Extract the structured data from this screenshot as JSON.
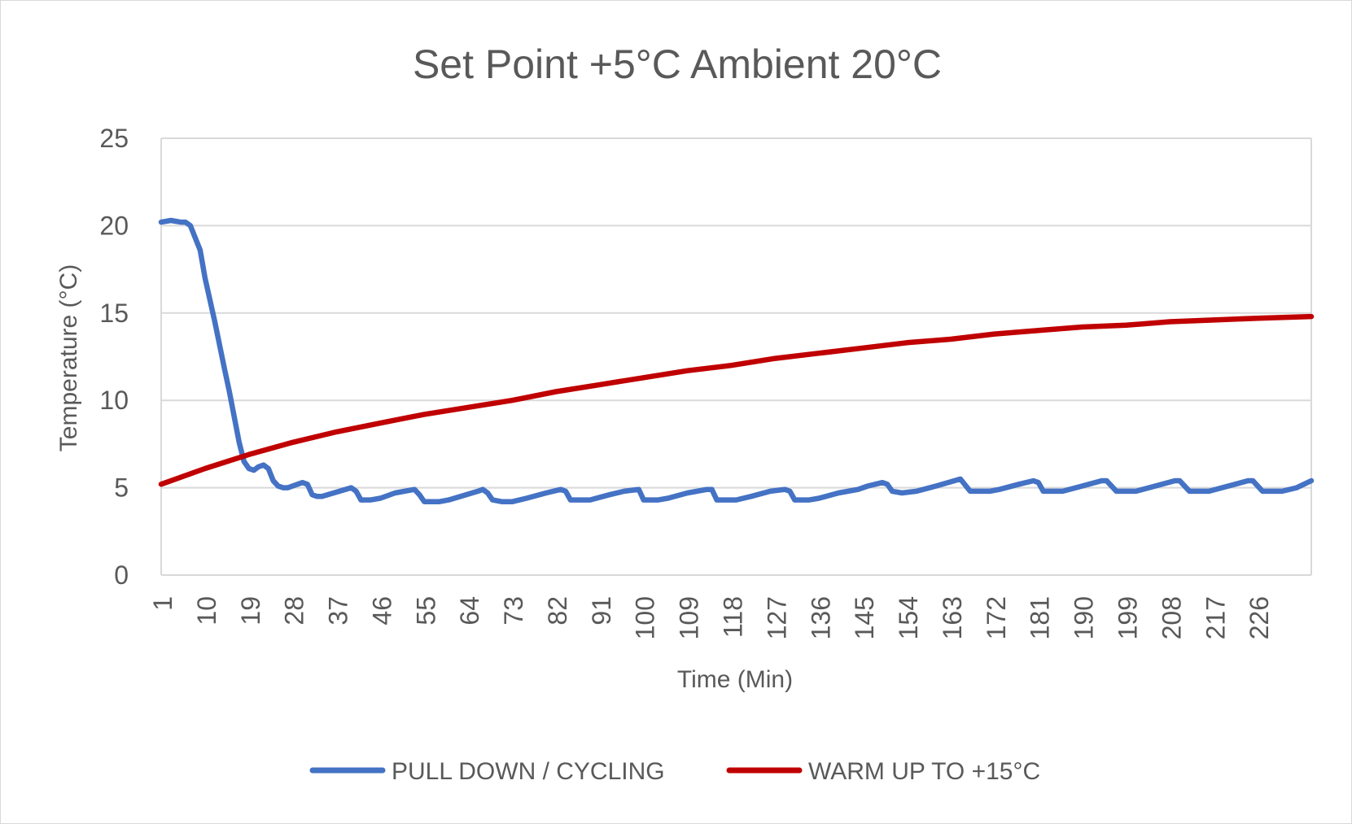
{
  "chart_data": {
    "type": "line",
    "title": "Set Point +5°C Ambient 20°C",
    "xlabel": "Time (Min)",
    "ylabel": "Temperature (°C)",
    "ylim": [
      0,
      25
    ],
    "yticks": [
      0,
      5,
      10,
      15,
      20,
      25
    ],
    "x_range": [
      1,
      237
    ],
    "x_tick_labels": [
      "1",
      "10",
      "19",
      "28",
      "37",
      "46",
      "55",
      "64",
      "73",
      "82",
      "91",
      "100",
      "109",
      "118",
      "127",
      "136",
      "145",
      "154",
      "163",
      "172",
      "181",
      "190",
      "199",
      "208",
      "217",
      "226"
    ],
    "grid": true,
    "legend": "bottom",
    "series": [
      {
        "name": "PULL DOWN / CYCLING",
        "color": "#4472C4",
        "points": [
          [
            1,
            20.2
          ],
          [
            3,
            20.3
          ],
          [
            5,
            20.2
          ],
          [
            6,
            20.2
          ],
          [
            7,
            20.0
          ],
          [
            9,
            18.6
          ],
          [
            10,
            17.0
          ],
          [
            12,
            14.5
          ],
          [
            14,
            11.8
          ],
          [
            15,
            10.5
          ],
          [
            17,
            7.6
          ],
          [
            18,
            6.5
          ],
          [
            19,
            6.1
          ],
          [
            20,
            6.0
          ],
          [
            21,
            6.2
          ],
          [
            22,
            6.3
          ],
          [
            23,
            6.1
          ],
          [
            24,
            5.4
          ],
          [
            25,
            5.1
          ],
          [
            26,
            5.0
          ],
          [
            27,
            5.0
          ],
          [
            30,
            5.3
          ],
          [
            31,
            5.2
          ],
          [
            32,
            4.6
          ],
          [
            33,
            4.5
          ],
          [
            34,
            4.5
          ],
          [
            40,
            5.0
          ],
          [
            41,
            4.8
          ],
          [
            42,
            4.3
          ],
          [
            44,
            4.3
          ],
          [
            46,
            4.4
          ],
          [
            49,
            4.7
          ],
          [
            53,
            4.9
          ],
          [
            54,
            4.6
          ],
          [
            55,
            4.2
          ],
          [
            58,
            4.2
          ],
          [
            60,
            4.3
          ],
          [
            66,
            4.8
          ],
          [
            67,
            4.9
          ],
          [
            68,
            4.7
          ],
          [
            69,
            4.3
          ],
          [
            71,
            4.2
          ],
          [
            73,
            4.2
          ],
          [
            76,
            4.4
          ],
          [
            80,
            4.7
          ],
          [
            83,
            4.9
          ],
          [
            84,
            4.8
          ],
          [
            85,
            4.3
          ],
          [
            89,
            4.3
          ],
          [
            93,
            4.6
          ],
          [
            96,
            4.8
          ],
          [
            99,
            4.9
          ],
          [
            100,
            4.3
          ],
          [
            103,
            4.3
          ],
          [
            105,
            4.4
          ],
          [
            109,
            4.7
          ],
          [
            113,
            4.9
          ],
          [
            114,
            4.9
          ],
          [
            115,
            4.3
          ],
          [
            119,
            4.3
          ],
          [
            122,
            4.5
          ],
          [
            126,
            4.8
          ],
          [
            129,
            4.9
          ],
          [
            130,
            4.8
          ],
          [
            131,
            4.3
          ],
          [
            134,
            4.3
          ],
          [
            136,
            4.4
          ],
          [
            140,
            4.7
          ],
          [
            144,
            4.9
          ],
          [
            146,
            5.1
          ],
          [
            149,
            5.3
          ],
          [
            150,
            5.2
          ],
          [
            151,
            4.8
          ],
          [
            153,
            4.7
          ],
          [
            156,
            4.8
          ],
          [
            160,
            5.1
          ],
          [
            165,
            5.5
          ],
          [
            167,
            4.8
          ],
          [
            171,
            4.8
          ],
          [
            173,
            4.9
          ],
          [
            177,
            5.2
          ],
          [
            180,
            5.4
          ],
          [
            181,
            5.3
          ],
          [
            182,
            4.8
          ],
          [
            186,
            4.8
          ],
          [
            190,
            5.1
          ],
          [
            194,
            5.4
          ],
          [
            195,
            5.4
          ],
          [
            197,
            4.8
          ],
          [
            201,
            4.8
          ],
          [
            205,
            5.1
          ],
          [
            209,
            5.4
          ],
          [
            210,
            5.4
          ],
          [
            212,
            4.8
          ],
          [
            216,
            4.8
          ],
          [
            220,
            5.1
          ],
          [
            224,
            5.4
          ],
          [
            225,
            5.4
          ],
          [
            227,
            4.8
          ],
          [
            231,
            4.8
          ],
          [
            234,
            5.0
          ],
          [
            237,
            5.4
          ]
        ]
      },
      {
        "name": "WARM UP TO +15°C",
        "color": "#C00000",
        "points": [
          [
            1,
            5.2
          ],
          [
            10,
            6.1
          ],
          [
            19,
            6.9
          ],
          [
            28,
            7.6
          ],
          [
            37,
            8.2
          ],
          [
            46,
            8.7
          ],
          [
            55,
            9.2
          ],
          [
            64,
            9.6
          ],
          [
            73,
            10.0
          ],
          [
            82,
            10.5
          ],
          [
            91,
            10.9
          ],
          [
            100,
            11.3
          ],
          [
            109,
            11.7
          ],
          [
            118,
            12.0
          ],
          [
            127,
            12.4
          ],
          [
            136,
            12.7
          ],
          [
            145,
            13.0
          ],
          [
            154,
            13.3
          ],
          [
            163,
            13.5
          ],
          [
            172,
            13.8
          ],
          [
            181,
            14.0
          ],
          [
            190,
            14.2
          ],
          [
            199,
            14.3
          ],
          [
            208,
            14.5
          ],
          [
            217,
            14.6
          ],
          [
            226,
            14.7
          ],
          [
            237,
            14.8
          ]
        ]
      }
    ]
  }
}
